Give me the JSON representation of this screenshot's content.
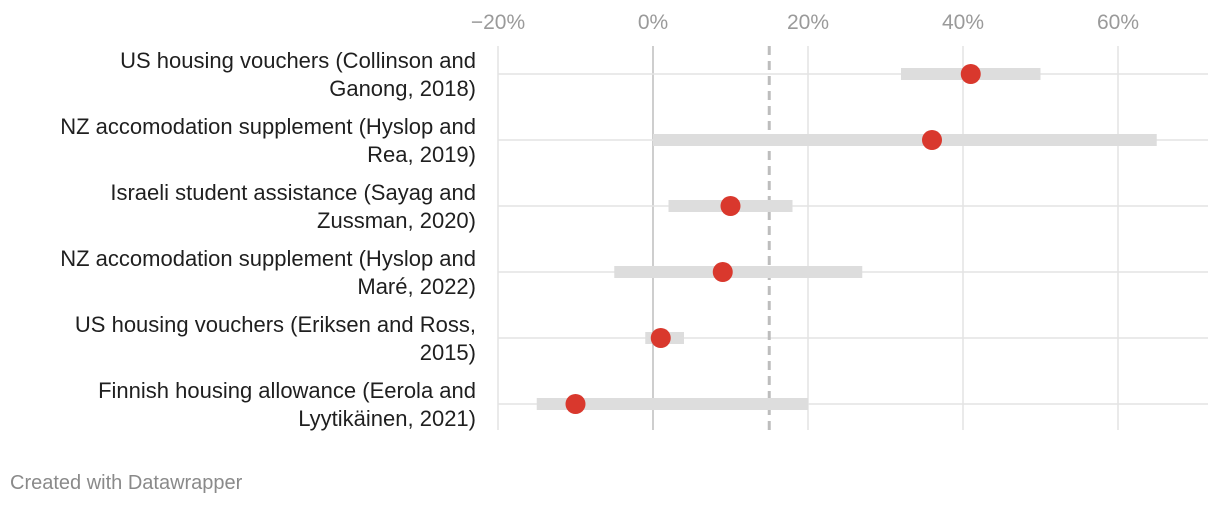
{
  "chart_data": {
    "type": "range-dot",
    "title": "",
    "xlabel": "",
    "ylabel": "",
    "xlim": [
      -20,
      70
    ],
    "x_ticks": [
      -20,
      0,
      20,
      40,
      60
    ],
    "x_tick_labels": [
      "−20%",
      "0%",
      "20%",
      "40%",
      "60%"
    ],
    "reference_line": 15,
    "colors": {
      "dot": "#d9382d",
      "range": "#dddddd",
      "grid": "#e3e3e3",
      "zero": "#bdbdbd",
      "ref": "#bdbdbd"
    },
    "rows": [
      {
        "label_lines": [
          "US housing vouchers (Collinson and",
          "Ganong, 2018)"
        ],
        "value": 41,
        "low": 32,
        "high": 50
      },
      {
        "label_lines": [
          "NZ accomodation supplement (Hyslop and",
          "Rea, 2019)"
        ],
        "value": 36,
        "low": 0,
        "high": 65
      },
      {
        "label_lines": [
          "Israeli student assistance (Sayag and",
          "Zussman, 2020)"
        ],
        "value": 10,
        "low": 2,
        "high": 18
      },
      {
        "label_lines": [
          "NZ accomodation supplement (Hyslop and",
          "Maré, 2022)"
        ],
        "value": 9,
        "low": -5,
        "high": 27
      },
      {
        "label_lines": [
          "US housing vouchers (Eriksen and Ross,",
          "2015)"
        ],
        "value": 1,
        "low": -1,
        "high": 4
      },
      {
        "label_lines": [
          "Finnish housing allowance (Eerola and",
          "Lyytikäinen, 2021)"
        ],
        "value": -10,
        "low": -15,
        "high": 20
      }
    ]
  },
  "footer": {
    "text": "Created with Datawrapper"
  }
}
